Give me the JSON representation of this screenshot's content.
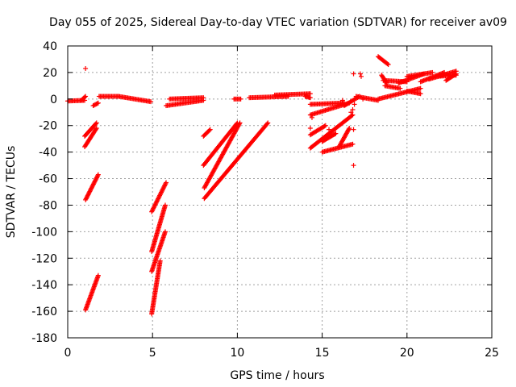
{
  "chart_data": {
    "type": "scatter",
    "title": "Day 055 of 2025, Sidereal Day-to-day VTEC variation (SDTVAR) for receiver av09",
    "xlabel": "GPS time / hours",
    "ylabel": "SDTVAR / TECUs",
    "xlim": [
      0,
      25
    ],
    "ylim": [
      -180,
      40
    ],
    "xticks": [
      0,
      5,
      10,
      15,
      20,
      25
    ],
    "yticks": [
      -180,
      -160,
      -140,
      -120,
      -100,
      -80,
      -60,
      -40,
      -20,
      0,
      20,
      40
    ],
    "grid": true,
    "marker": "+",
    "color": "#ff0000",
    "segments": [
      {
        "x0": 0.0,
        "y0": -1.5,
        "x1": 1.0,
        "y1": -1
      },
      {
        "x0": 0.8,
        "y0": -1,
        "x1": 1.05,
        "y1": 2
      },
      {
        "x0": 1.5,
        "y0": -5,
        "x1": 1.8,
        "y1": -3
      },
      {
        "x0": 1.85,
        "y0": 2,
        "x1": 3.0,
        "y1": 2
      },
      {
        "x0": 3.0,
        "y0": 2,
        "x1": 4.9,
        "y1": -2
      },
      {
        "x0": 1.0,
        "y0": -28,
        "x1": 1.7,
        "y1": -18
      },
      {
        "x0": 1.0,
        "y0": -36,
        "x1": 1.7,
        "y1": -22
      },
      {
        "x0": 1.05,
        "y0": -76,
        "x1": 1.8,
        "y1": -57
      },
      {
        "x0": 1.05,
        "y0": -159,
        "x1": 1.8,
        "y1": -133
      },
      {
        "x0": 4.95,
        "y0": -85,
        "x1": 5.8,
        "y1": -63
      },
      {
        "x0": 4.95,
        "y0": -115,
        "x1": 5.75,
        "y1": -80
      },
      {
        "x0": 4.95,
        "y0": -130,
        "x1": 5.75,
        "y1": -100
      },
      {
        "x0": 4.95,
        "y0": -162,
        "x1": 5.45,
        "y1": -122
      },
      {
        "x0": 5.8,
        "y0": -5,
        "x1": 8.0,
        "y1": -1
      },
      {
        "x0": 6.0,
        "y0": 0,
        "x1": 8.0,
        "y1": 1
      },
      {
        "x0": 8.0,
        "y0": -28,
        "x1": 8.4,
        "y1": -23
      },
      {
        "x0": 8.0,
        "y0": -50,
        "x1": 10.0,
        "y1": -18
      },
      {
        "x0": 8.05,
        "y0": -67,
        "x1": 10.15,
        "y1": -18
      },
      {
        "x0": 8.05,
        "y0": -75,
        "x1": 11.8,
        "y1": -18
      },
      {
        "x0": 9.8,
        "y0": 0,
        "x1": 10.2,
        "y1": 0
      },
      {
        "x0": 10.7,
        "y0": 1,
        "x1": 13.0,
        "y1": 2
      },
      {
        "x0": 12.2,
        "y0": 3,
        "x1": 14.3,
        "y1": 4
      },
      {
        "x0": 14.0,
        "y0": 2,
        "x1": 14.3,
        "y1": 1
      },
      {
        "x0": 14.3,
        "y0": -4,
        "x1": 16.3,
        "y1": -3
      },
      {
        "x0": 14.3,
        "y0": -12,
        "x1": 16.6,
        "y1": -3
      },
      {
        "x0": 14.3,
        "y0": -27,
        "x1": 15.2,
        "y1": -20
      },
      {
        "x0": 14.3,
        "y0": -37,
        "x1": 16.8,
        "y1": -12
      },
      {
        "x0": 15.0,
        "y0": -32,
        "x1": 15.8,
        "y1": -26
      },
      {
        "x0": 15.0,
        "y0": -40,
        "x1": 16.8,
        "y1": -34
      },
      {
        "x0": 16.0,
        "y0": -36,
        "x1": 16.6,
        "y1": -22
      },
      {
        "x0": 16.3,
        "y0": -5,
        "x1": 17.2,
        "y1": 2
      },
      {
        "x0": 17.0,
        "y0": 2,
        "x1": 18.3,
        "y1": -1
      },
      {
        "x0": 18.3,
        "y0": 32,
        "x1": 18.9,
        "y1": 26
      },
      {
        "x0": 18.5,
        "y0": 18,
        "x1": 18.8,
        "y1": 12
      },
      {
        "x0": 18.6,
        "y0": 14,
        "x1": 20.0,
        "y1": 13
      },
      {
        "x0": 18.7,
        "y0": 10,
        "x1": 19.6,
        "y1": 8
      },
      {
        "x0": 19.5,
        "y0": 12,
        "x1": 21.0,
        "y1": 19
      },
      {
        "x0": 20.0,
        "y0": 17,
        "x1": 21.5,
        "y1": 20
      },
      {
        "x0": 20.8,
        "y0": 13,
        "x1": 22.2,
        "y1": 20
      },
      {
        "x0": 21.3,
        "y0": 15,
        "x1": 22.9,
        "y1": 21
      },
      {
        "x0": 21.7,
        "y0": 17,
        "x1": 22.9,
        "y1": 18
      },
      {
        "x0": 22.3,
        "y0": 14,
        "x1": 22.9,
        "y1": 19
      },
      {
        "x0": 18.3,
        "y0": 0,
        "x1": 20.8,
        "y1": 8
      },
      {
        "x0": 20.0,
        "y0": 6,
        "x1": 20.8,
        "y1": 4
      }
    ],
    "points": [
      {
        "x": 1.05,
        "y": 23
      },
      {
        "x": 16.85,
        "y": 19
      },
      {
        "x": 17.25,
        "y": 19
      },
      {
        "x": 17.3,
        "y": 17
      },
      {
        "x": 16.85,
        "y": -23
      },
      {
        "x": 16.85,
        "y": -50
      },
      {
        "x": 16.8,
        "y": -8
      },
      {
        "x": 16.7,
        "y": -10
      },
      {
        "x": 16.9,
        "y": -4
      },
      {
        "x": 14.3,
        "y": -22
      },
      {
        "x": 16.2,
        "y": -1
      },
      {
        "x": 17.4,
        "y": 0
      },
      {
        "x": 15.4,
        "y": -23
      },
      {
        "x": 14.4,
        "y": -14
      }
    ]
  }
}
